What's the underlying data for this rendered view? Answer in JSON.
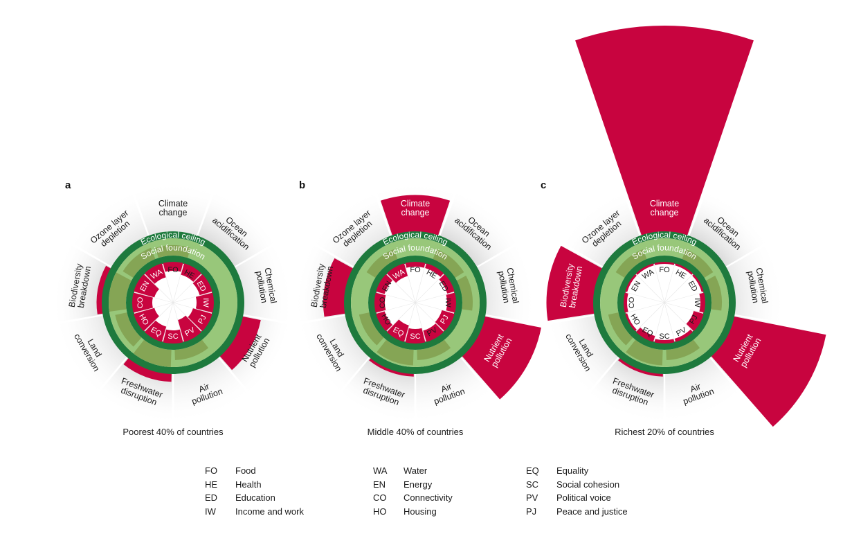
{
  "colors": {
    "overshoot": "#c8043f",
    "ring_dark": "#1e7a3d",
    "ring_light": "#98c77a",
    "ring_olive": "#7f9a4a",
    "wedge_grey": "#dcdcdc",
    "inner_white": "#ffffff"
  },
  "ring_labels": {
    "ecological_ceiling": "Ecological ceiling",
    "social_foundation": "Social foundation"
  },
  "panels": [
    {
      "letter": "a",
      "caption": "Poorest 40% of countries",
      "ecological": {
        "Climate change": 0.9,
        "Ocean acidification": 0.85,
        "Chemical pollution": 0.85,
        "Nutrient pollution": 1.35,
        "Air pollution": 0.9,
        "Freshwater disruption": 1.15,
        "Land conversion": 0.95,
        "Biodiversity breakdown": 1.1,
        "Ozone layer depletion": 0.95
      },
      "social": {
        "FO": 0.3,
        "HE": 0.4,
        "ED": 0.45,
        "IW": 0.6,
        "PJ": 0.7,
        "PV": 0.8,
        "SC": 0.45,
        "EQ": 0.55,
        "HO": 0.75,
        "CO": 0.7,
        "EN": 0.75,
        "WA": 0.5
      }
    },
    {
      "letter": "b",
      "caption": "Middle 40% of countries",
      "ecological": {
        "Climate change": 1.7,
        "Ocean acidification": 0.9,
        "Chemical pollution": 0.9,
        "Nutrient pollution": 2.1,
        "Air pollution": 0.9,
        "Freshwater disruption": 1.05,
        "Land conversion": 0.9,
        "Biodiversity breakdown": 1.4,
        "Ozone layer depletion": 0.9
      },
      "social": {
        "FO": 0.15,
        "HE": 0.15,
        "ED": 0.25,
        "IW": 0.3,
        "PJ": 0.45,
        "PV": 0.4,
        "SC": 0.5,
        "EQ": 0.6,
        "HO": 0.3,
        "CO": 0.35,
        "EN": 0.3,
        "WA": 0.45
      }
    },
    {
      "letter": "c",
      "caption": "Richest 20% of countries",
      "ecological": {
        "Climate change": 4.5,
        "Ocean acidification": 0.9,
        "Chemical pollution": 0.9,
        "Nutrient pollution": 2.8,
        "Air pollution": 0.9,
        "Freshwater disruption": 1.05,
        "Land conversion": 0.9,
        "Biodiversity breakdown": 1.9,
        "Ozone layer depletion": 0.9
      },
      "social": {
        "FO": 0.05,
        "HE": 0.05,
        "ED": 0.05,
        "IW": 0.15,
        "PJ": 0.35,
        "PV": 0.1,
        "SC": 0.1,
        "EQ": 0.2,
        "HO": 0.05,
        "CO": 0.1,
        "EN": 0.05,
        "WA": 0.05
      }
    }
  ],
  "chart_data": [
    {
      "type": "polar-bar",
      "title": "",
      "panel": "a",
      "caption": "Poorest 40% of countries",
      "ecological_categories": [
        "Climate change",
        "Ocean acidification",
        "Chemical pollution",
        "Nutrient pollution",
        "Air pollution",
        "Freshwater disruption",
        "Land conversion",
        "Biodiversity breakdown",
        "Ozone layer depletion"
      ],
      "social_categories": [
        "FO",
        "HE",
        "ED",
        "IW",
        "PJ",
        "PV",
        "SC",
        "EQ",
        "HO",
        "CO",
        "EN",
        "WA"
      ]
    },
    {
      "type": "polar-bar",
      "title": "",
      "panel": "b",
      "caption": "Middle 40% of countries",
      "ecological_categories": [
        "Climate change",
        "Ocean acidification",
        "Chemical pollution",
        "Nutrient pollution",
        "Air pollution",
        "Freshwater disruption",
        "Land conversion",
        "Biodiversity breakdown",
        "Ozone layer depletion"
      ],
      "social_categories": [
        "FO",
        "HE",
        "ED",
        "IW",
        "PJ",
        "PV",
        "SC",
        "EQ",
        "HO",
        "CO",
        "EN",
        "WA"
      ]
    },
    {
      "type": "polar-bar",
      "title": "",
      "panel": "c",
      "caption": "Richest 20% of countries",
      "ecological_categories": [
        "Climate change",
        "Ocean acidification",
        "Chemical pollution",
        "Nutrient pollution",
        "Air pollution",
        "Freshwater disruption",
        "Land conversion",
        "Biodiversity breakdown",
        "Ozone layer depletion"
      ],
      "social_categories": [
        "FO",
        "HE",
        "ED",
        "IW",
        "PJ",
        "PV",
        "SC",
        "EQ",
        "HO",
        "CO",
        "EN",
        "WA"
      ]
    }
  ],
  "ecological_labels": [
    [
      "Climate",
      "change"
    ],
    [
      "Ocean",
      "acidification"
    ],
    [
      "Chemical",
      "pollution"
    ],
    [
      "Nutrient",
      "pollution"
    ],
    [
      "Air",
      "pollution"
    ],
    [
      "Freshwater",
      "disruption"
    ],
    [
      "Land",
      "conversion"
    ],
    [
      "Biodiversity",
      "breakdown"
    ],
    [
      "Ozone layer",
      "depletion"
    ]
  ],
  "legend": {
    "columns": [
      [
        {
          "code": "FO",
          "name": "Food"
        },
        {
          "code": "HE",
          "name": "Health"
        },
        {
          "code": "ED",
          "name": "Education"
        },
        {
          "code": "IW",
          "name": "Income and work"
        }
      ],
      [
        {
          "code": "WA",
          "name": "Water"
        },
        {
          "code": "EN",
          "name": "Energy"
        },
        {
          "code": "CO",
          "name": "Connectivity"
        },
        {
          "code": "HO",
          "name": "Housing"
        }
      ],
      [
        {
          "code": "EQ",
          "name": "Equality"
        },
        {
          "code": "SC",
          "name": "Social cohesion"
        },
        {
          "code": "PV",
          "name": "Political voice"
        },
        {
          "code": "PJ",
          "name": "Peace and justice"
        }
      ]
    ]
  }
}
